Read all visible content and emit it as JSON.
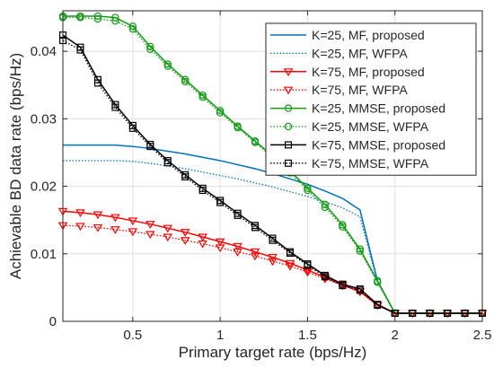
{
  "chart_data": {
    "type": "line",
    "title": "",
    "xlabel": "Primary target rate (bps/Hz)",
    "ylabel": "Achievable BD data rate (bps/Hz)",
    "xlim": [
      0.1,
      2.5
    ],
    "ylim": [
      0,
      0.046
    ],
    "xticks": [
      0.5,
      1,
      1.5,
      2,
      2.5
    ],
    "xtick_labels": [
      "0.5",
      "1",
      "1.5",
      "2",
      "2.5"
    ],
    "yticks": [
      0,
      0.01,
      0.02,
      0.03,
      0.04
    ],
    "ytick_labels": [
      "0",
      "0.01",
      "0.02",
      "0.03",
      "0.04"
    ],
    "grid": true,
    "legend_position": "top-right",
    "colors": {
      "blue": "#0072bd",
      "red": "#ff0000",
      "green": "#159a15",
      "black": "#000000"
    },
    "x": [
      0.1,
      0.2,
      0.3,
      0.4,
      0.5,
      0.6,
      0.7,
      0.8,
      0.9,
      1.0,
      1.1,
      1.2,
      1.3,
      1.4,
      1.5,
      1.6,
      1.7,
      1.8,
      1.9,
      2.0,
      2.1,
      2.2,
      2.3,
      2.4,
      2.5
    ],
    "series": [
      {
        "name": "K=25, MF, proposed",
        "color": "#0072bd",
        "style": "solid",
        "marker": "none",
        "values": [
          0.0261,
          0.0261,
          0.0261,
          0.0261,
          0.0259,
          0.0256,
          0.0252,
          0.0248,
          0.0243,
          0.0238,
          0.0232,
          0.0226,
          0.0219,
          0.0211,
          0.0203,
          0.0193,
          0.0182,
          0.0165,
          0.006,
          0.0012,
          0.0012,
          0.0012,
          0.0012,
          0.0012,
          0.0012
        ]
      },
      {
        "name": "K=25, MF, WFPA",
        "color": "#0072bd",
        "style": "dotted",
        "marker": "none",
        "values": [
          0.0238,
          0.0238,
          0.0238,
          0.0238,
          0.0237,
          0.0234,
          0.023,
          0.0226,
          0.0221,
          0.0216,
          0.0211,
          0.0205,
          0.0199,
          0.0192,
          0.0185,
          0.0177,
          0.0168,
          0.0155,
          0.0058,
          0.0012,
          0.0012,
          0.0012,
          0.0012,
          0.0012,
          0.0012
        ]
      },
      {
        "name": "K=75, MF, proposed",
        "color": "#ff0000",
        "style": "solid",
        "marker": "triangle-down",
        "values": [
          0.0163,
          0.0161,
          0.0158,
          0.0154,
          0.0149,
          0.0144,
          0.0138,
          0.0132,
          0.0125,
          0.0118,
          0.0111,
          0.0103,
          0.0095,
          0.0086,
          0.0076,
          0.0065,
          0.0054,
          0.0044,
          0.0024,
          0.0012,
          0.0012,
          0.0012,
          0.0012,
          0.0012,
          0.0012
        ]
      },
      {
        "name": "K=75, MF, WFPA",
        "color": "#ff0000",
        "style": "dotted",
        "marker": "triangle-down",
        "values": [
          0.0142,
          0.0141,
          0.0139,
          0.0136,
          0.0133,
          0.0129,
          0.0125,
          0.012,
          0.0115,
          0.0109,
          0.0103,
          0.0097,
          0.0089,
          0.0082,
          0.0073,
          0.0063,
          0.0053,
          0.0044,
          0.0024,
          0.0012,
          0.0012,
          0.0012,
          0.0012,
          0.0012,
          0.0012
        ]
      },
      {
        "name": "K=25, MMSE, proposed",
        "color": "#159a15",
        "style": "solid",
        "marker": "circle",
        "values": [
          0.0452,
          0.0452,
          0.0452,
          0.045,
          0.0437,
          0.0407,
          0.0381,
          0.0358,
          0.0335,
          0.0312,
          0.0289,
          0.0267,
          0.0245,
          0.0223,
          0.0197,
          0.0173,
          0.0143,
          0.0107,
          0.006,
          0.0012,
          0.0012,
          0.0012,
          0.0012,
          0.0012,
          0.0012
        ]
      },
      {
        "name": "K=25, MMSE, WFPA",
        "color": "#159a15",
        "style": "dotted",
        "marker": "circle",
        "values": [
          0.045,
          0.045,
          0.0448,
          0.0445,
          0.0433,
          0.0403,
          0.0378,
          0.0355,
          0.0332,
          0.0309,
          0.0287,
          0.0265,
          0.0243,
          0.022,
          0.0194,
          0.0169,
          0.014,
          0.0104,
          0.0058,
          0.0012,
          0.0012,
          0.0012,
          0.0012,
          0.0012,
          0.0012
        ]
      },
      {
        "name": "K=75, MMSE, proposed",
        "color": "#000000",
        "style": "solid",
        "marker": "square",
        "values": [
          0.0424,
          0.0406,
          0.0358,
          0.0321,
          0.029,
          0.0262,
          0.0238,
          0.0217,
          0.0197,
          0.0179,
          0.016,
          0.0142,
          0.0123,
          0.0103,
          0.0085,
          0.0068,
          0.0055,
          0.0048,
          0.0025,
          0.0012,
          0.0012,
          0.0012,
          0.0012,
          0.0012,
          0.0012
        ]
      },
      {
        "name": "K=75, MMSE, WFPA",
        "color": "#000000",
        "style": "dotted",
        "marker": "square",
        "values": [
          0.0416,
          0.0402,
          0.0353,
          0.0317,
          0.0286,
          0.0259,
          0.0235,
          0.0214,
          0.0194,
          0.0176,
          0.0157,
          0.0139,
          0.012,
          0.0101,
          0.0083,
          0.0066,
          0.0053,
          0.0046,
          0.0024,
          0.0012,
          0.0012,
          0.0012,
          0.0012,
          0.0012,
          0.0012
        ]
      }
    ]
  }
}
